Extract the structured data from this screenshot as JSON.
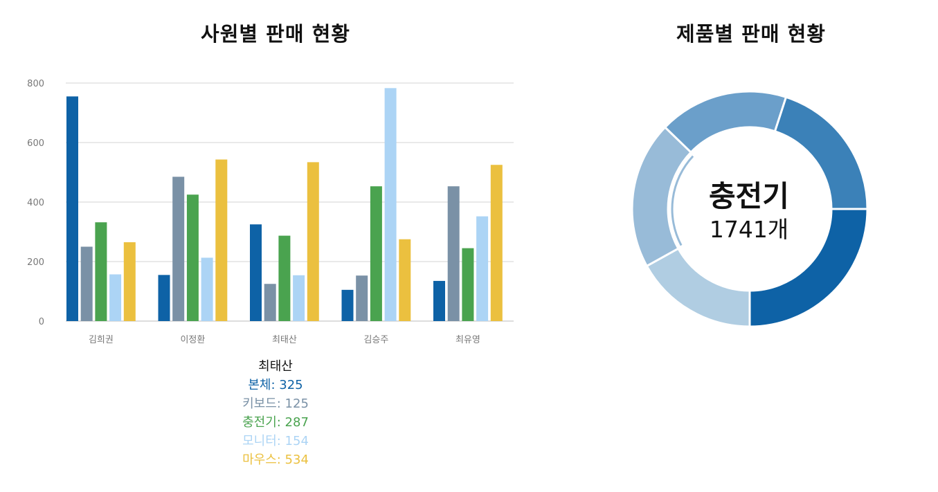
{
  "chart_data": [
    {
      "type": "bar",
      "title": "사원별 판매 현황",
      "categories": [
        "김희권",
        "이정환",
        "최태산",
        "김승주",
        "최유영"
      ],
      "series": [
        {
          "name": "본체",
          "color": "#0e62a6",
          "values": [
            755,
            155,
            325,
            105,
            135
          ]
        },
        {
          "name": "키보드",
          "color": "#7a91a6",
          "values": [
            250,
            485,
            125,
            153,
            453
          ]
        },
        {
          "name": "충전기",
          "color": "#4aa34f",
          "values": [
            332,
            425,
            287,
            453,
            245
          ]
        },
        {
          "name": "모니터",
          "color": "#acd4f5",
          "values": [
            157,
            213,
            154,
            783,
            352
          ]
        },
        {
          "name": "마우스",
          "color": "#ebc03f",
          "values": [
            265,
            543,
            534,
            275,
            525
          ]
        }
      ],
      "yticks": [
        0,
        200,
        400,
        600,
        800
      ],
      "ylim": [
        0,
        800
      ],
      "grid": true
    },
    {
      "type": "pie",
      "title": "제품별 판매 현황",
      "donut": true,
      "highlighted": "충전기",
      "slices": [
        {
          "name": "본체",
          "color": "#0e62a6"
        },
        {
          "name": "마우스",
          "color": "#b0cde2"
        },
        {
          "name": "충전기",
          "color": "#98bbd8"
        },
        {
          "name": "모니터",
          "color": "#6b9fca"
        },
        {
          "name": "키보드",
          "color": "#3b81b8"
        }
      ]
    }
  ],
  "tooltip": {
    "name": "최태산",
    "rows": [
      {
        "label": "본체",
        "value": "325",
        "color": "#0e62a6"
      },
      {
        "label": "키보드",
        "value": "125",
        "color": "#7a91a6"
      },
      {
        "label": "충전기",
        "value": "287",
        "color": "#4aa34f"
      },
      {
        "label": "모니터",
        "value": "154",
        "color": "#acd4f5"
      },
      {
        "label": "마우스",
        "value": "534",
        "color": "#ebc03f"
      }
    ]
  },
  "donut_center": {
    "category": "충전기",
    "value_text": "1741개"
  }
}
